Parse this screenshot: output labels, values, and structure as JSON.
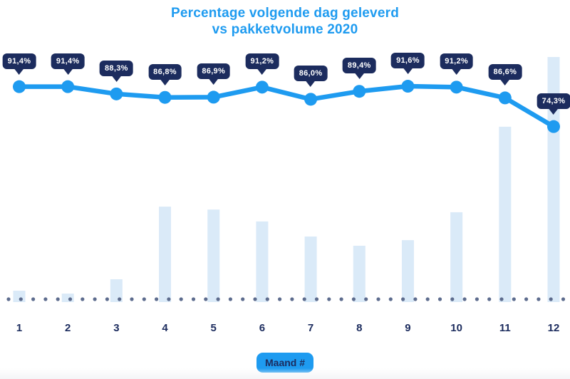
{
  "title": {
    "line1": "Percentage volgende dag geleverd",
    "line2": "vs pakketvolume 2020"
  },
  "x_axis": {
    "label_badge": "Maand #",
    "ticks": [
      "1",
      "2",
      "3",
      "4",
      "5",
      "6",
      "7",
      "8",
      "9",
      "10",
      "11",
      "12"
    ]
  },
  "colors": {
    "accent_blue": "#1e9bf0",
    "navy_badge": "#1c2c5e",
    "bar_fill": "#daeaf8",
    "baseline_dot_gray": "#5d6c8e",
    "badge_text": "#ffffff",
    "background": "#ffffff"
  },
  "chart_data": {
    "type": "combo",
    "title": "Percentage volgende dag geleverd vs pakketvolume 2020",
    "xlabel": "Maand #",
    "ylabel": "",
    "legend": "none",
    "grid": false,
    "y_axis_visible": false,
    "categories": [
      "1",
      "2",
      "3",
      "4",
      "5",
      "6",
      "7",
      "8",
      "9",
      "10",
      "11",
      "12"
    ],
    "series": [
      {
        "name": "Percentage volgende dag geleverd",
        "type": "line",
        "unit": "%",
        "values": [
          91.4,
          91.4,
          88.3,
          86.8,
          86.9,
          91.2,
          86.0,
          89.4,
          91.6,
          91.2,
          86.6,
          74.3
        ],
        "labels": [
          "91,4%",
          "91,4%",
          "88,3%",
          "86,8%",
          "86,9%",
          "91,2%",
          "86,0%",
          "89,4%",
          "91,6%",
          "91,2%",
          "86,6%",
          "74,3%"
        ]
      },
      {
        "name": "Pakketvolume 2020",
        "type": "bar",
        "unit": "relative volume index (December = 100, estimated from bar heights)",
        "values": [
          3.8,
          2.6,
          8.5,
          38.4,
          37.2,
          32.3,
          26.1,
          22.3,
          24.6,
          36.1,
          71.3,
          100
        ]
      }
    ]
  }
}
